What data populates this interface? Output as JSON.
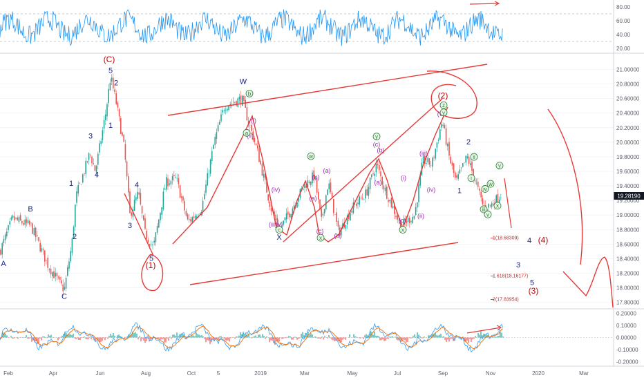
{
  "chart_data": {
    "type": "candlestick",
    "instrument_last_price": "19.28190",
    "x_axis": {
      "ticks": [
        "Feb",
        "Apr",
        "Jun",
        "Aug",
        "Oct",
        "5",
        "2019",
        "Mar",
        "May",
        "Jul",
        "Sep",
        "Nov",
        "2020",
        "Mar"
      ]
    },
    "price_axis": {
      "ticks": [
        "21.00000",
        "20.80000",
        "20.60000",
        "20.40000",
        "20.20000",
        "20.00000",
        "19.80000",
        "19.60000",
        "19.40000",
        "19.20000",
        "19.00000",
        "18.80000",
        "18.60000",
        "18.40000",
        "18.20000",
        "18.00000",
        "17.80000"
      ],
      "range": [
        17.75,
        21.08
      ]
    },
    "rsi_axis": {
      "ticks": [
        "80.00",
        "60.00",
        "40.00",
        "20.00"
      ],
      "range": [
        15,
        88
      ]
    },
    "macd_axis": {
      "ticks": [
        "0.20000",
        "0.10000",
        "0.00000",
        "-0.10000",
        "-0.20000"
      ],
      "range": [
        -0.22,
        0.22
      ]
    },
    "price_series_keypoints": [
      {
        "x": 0,
        "y": 18.5
      },
      {
        "x": 18,
        "y": 18.95
      },
      {
        "x": 45,
        "y": 18.85
      },
      {
        "x": 70,
        "y": 18.3
      },
      {
        "x": 93,
        "y": 17.97
      },
      {
        "x": 104,
        "y": 18.6
      },
      {
        "x": 110,
        "y": 19.25
      },
      {
        "x": 130,
        "y": 19.85
      },
      {
        "x": 138,
        "y": 19.6
      },
      {
        "x": 153,
        "y": 20.4
      },
      {
        "x": 160,
        "y": 20.9
      },
      {
        "x": 168,
        "y": 20.55
      },
      {
        "x": 180,
        "y": 19.9
      },
      {
        "x": 188,
        "y": 19.0
      },
      {
        "x": 200,
        "y": 19.3
      },
      {
        "x": 210,
        "y": 18.75
      },
      {
        "x": 222,
        "y": 18.55
      },
      {
        "x": 240,
        "y": 19.45
      },
      {
        "x": 255,
        "y": 19.5
      },
      {
        "x": 272,
        "y": 18.9
      },
      {
        "x": 292,
        "y": 19.1
      },
      {
        "x": 310,
        "y": 20.0
      },
      {
        "x": 325,
        "y": 20.5
      },
      {
        "x": 350,
        "y": 20.6
      },
      {
        "x": 362,
        "y": 20.2
      },
      {
        "x": 372,
        "y": 19.9
      },
      {
        "x": 392,
        "y": 19.1
      },
      {
        "x": 404,
        "y": 18.8
      },
      {
        "x": 420,
        "y": 19.05
      },
      {
        "x": 440,
        "y": 19.4
      },
      {
        "x": 455,
        "y": 19.55
      },
      {
        "x": 465,
        "y": 18.9
      },
      {
        "x": 475,
        "y": 19.45
      },
      {
        "x": 490,
        "y": 18.75
      },
      {
        "x": 510,
        "y": 19.1
      },
      {
        "x": 530,
        "y": 19.3
      },
      {
        "x": 545,
        "y": 19.7
      },
      {
        "x": 555,
        "y": 19.4
      },
      {
        "x": 580,
        "y": 18.85
      },
      {
        "x": 600,
        "y": 19.0
      },
      {
        "x": 612,
        "y": 19.75
      },
      {
        "x": 625,
        "y": 19.7
      },
      {
        "x": 640,
        "y": 20.3
      },
      {
        "x": 650,
        "y": 19.8
      },
      {
        "x": 660,
        "y": 19.45
      },
      {
        "x": 676,
        "y": 19.8
      },
      {
        "x": 685,
        "y": 19.55
      },
      {
        "x": 700,
        "y": 19.1
      },
      {
        "x": 712,
        "y": 19.15
      },
      {
        "x": 725,
        "y": 19.28
      }
    ],
    "wave_labels": [
      {
        "text": "A",
        "x": 5,
        "y": 18.3,
        "cls": "lbl-navy"
      },
      {
        "text": "B",
        "x": 44,
        "y": 19.05,
        "cls": "lbl-navy"
      },
      {
        "text": "C",
        "x": 93,
        "y": 17.85,
        "cls": "lbl-navy"
      },
      {
        "text": "1",
        "x": 103,
        "y": 19.4,
        "cls": "lbl-navy"
      },
      {
        "text": "2",
        "x": 108,
        "y": 18.67,
        "cls": "lbl-navy"
      },
      {
        "text": "3",
        "x": 131,
        "y": 20.05,
        "cls": "lbl-navy"
      },
      {
        "text": "4",
        "x": 140,
        "y": 19.52,
        "cls": "lbl-navy"
      },
      {
        "text": "5",
        "x": 160,
        "y": 20.95,
        "cls": "lbl-navy"
      },
      {
        "text": "1",
        "x": 160,
        "y": 20.2,
        "cls": "lbl-navy"
      },
      {
        "text": "2",
        "x": 168,
        "y": 20.78,
        "cls": "lbl-navy"
      },
      {
        "text": "3",
        "x": 188,
        "y": 18.82,
        "cls": "lbl-navy"
      },
      {
        "text": "4",
        "x": 198,
        "y": 19.38,
        "cls": "lbl-navy"
      },
      {
        "text": "5",
        "x": 219,
        "y": 18.37,
        "cls": "lbl-navy"
      },
      {
        "text": "W",
        "x": 352,
        "y": 20.8,
        "cls": "lbl-navy"
      },
      {
        "text": "X",
        "x": 404,
        "y": 18.66,
        "cls": "lbl-navy"
      },
      {
        "text": "2",
        "x": 678,
        "y": 19.97,
        "cls": "lbl-navy"
      },
      {
        "text": "1",
        "x": 665,
        "y": 19.3,
        "cls": "lbl-navy"
      },
      {
        "text": "4",
        "x": 766,
        "y": 18.62,
        "cls": "lbl-navy"
      },
      {
        "text": "3",
        "x": 750,
        "y": 18.28,
        "cls": "lbl-navy"
      },
      {
        "text": "5",
        "x": 770,
        "y": 18.04,
        "cls": "lbl-navy"
      },
      {
        "text": "(C)",
        "x": 158,
        "y": 21.1,
        "cls": "lbl-red"
      },
      {
        "text": "(1)",
        "x": 218,
        "y": 18.27,
        "cls": "lbl-red"
      },
      {
        "text": "(2)",
        "x": 641,
        "y": 20.6,
        "cls": "lbl-red"
      },
      {
        "text": "(4)",
        "x": 786,
        "y": 18.62,
        "cls": "lbl-red"
      },
      {
        "text": "(3)",
        "x": 772,
        "y": 17.92,
        "cls": "lbl-red"
      },
      {
        "text": "(i)",
        "x": 367,
        "y": 20.27,
        "cls": "lbl-purple"
      },
      {
        "text": "(ii)",
        "x": 362,
        "y": 20.06,
        "cls": "lbl-purple"
      },
      {
        "text": "(iv)",
        "x": 399,
        "y": 19.32,
        "cls": "lbl-purple"
      },
      {
        "text": "(iii)",
        "x": 395,
        "y": 18.84,
        "cls": "lbl-purple"
      },
      {
        "text": "(v)",
        "x": 404,
        "y": 18.84,
        "cls": "lbl-purple"
      },
      {
        "text": "(a)",
        "x": 453,
        "y": 19.2,
        "cls": "lbl-purple"
      },
      {
        "text": "(b)",
        "x": 457,
        "y": 19.49,
        "cls": "lbl-purple"
      },
      {
        "text": "(c)",
        "x": 463,
        "y": 18.75,
        "cls": "lbl-purple"
      },
      {
        "text": "(a)",
        "x": 473,
        "y": 19.58,
        "cls": "lbl-purple"
      },
      {
        "text": "(b)",
        "x": 489,
        "y": 18.69,
        "cls": "lbl-purple"
      },
      {
        "text": "(c)",
        "x": 545,
        "y": 19.94,
        "cls": "lbl-purple"
      },
      {
        "text": "(b)",
        "x": 551,
        "y": 19.86,
        "cls": "lbl-purple"
      },
      {
        "text": "(a)",
        "x": 547,
        "y": 19.42,
        "cls": "lbl-purple"
      },
      {
        "text": "(i)",
        "x": 584,
        "y": 19.48,
        "cls": "lbl-purple"
      },
      {
        "text": "(c)",
        "x": 582,
        "y": 18.9,
        "cls": "lbl-purple"
      },
      {
        "text": "(ii)",
        "x": 609,
        "y": 18.96,
        "cls": "lbl-purple"
      },
      {
        "text": "(iii)",
        "x": 613,
        "y": 19.82,
        "cls": "lbl-purple"
      },
      {
        "text": "(iv)",
        "x": 624,
        "y": 19.32,
        "cls": "lbl-purple"
      },
      {
        "text": "(v)",
        "x": 638,
        "y": 20.36,
        "cls": "lbl-purple"
      }
    ],
    "circled_labels": [
      {
        "text": "b",
        "x": 361,
        "y": 20.64
      },
      {
        "text": "a",
        "x": 357,
        "y": 20.1
      },
      {
        "text": "c",
        "x": 404,
        "y": 18.77
      },
      {
        "text": "w",
        "x": 450,
        "y": 19.78
      },
      {
        "text": "x",
        "x": 464,
        "y": 18.66
      },
      {
        "text": "y",
        "x": 545,
        "y": 20.05
      },
      {
        "text": "x",
        "x": 583,
        "y": 18.77
      },
      {
        "text": "z",
        "x": 642,
        "y": 20.48
      },
      {
        "text": "y",
        "x": 642,
        "y": 20.38
      },
      {
        "text": "ii",
        "x": 686,
        "y": 19.77
      },
      {
        "text": "i",
        "x": 682,
        "y": 19.48
      },
      {
        "text": "iv",
        "x": 702,
        "y": 19.33
      },
      {
        "text": "w",
        "x": 710,
        "y": 19.4
      },
      {
        "text": "iii",
        "x": 700,
        "y": 19.05
      },
      {
        "text": "v",
        "x": 706,
        "y": 18.98
      },
      {
        "text": "x",
        "x": 720,
        "y": 19.1
      },
      {
        "text": "y",
        "x": 723,
        "y": 19.65
      }
    ],
    "fib_levels": [
      {
        "label": "1(18.68309)",
        "x": 710,
        "y": 18.683
      },
      {
        "label": "1.618(18.16177)",
        "x": 710,
        "y": 18.162
      },
      {
        "label": "2(17.83954)",
        "x": 710,
        "y": 17.84
      }
    ]
  }
}
